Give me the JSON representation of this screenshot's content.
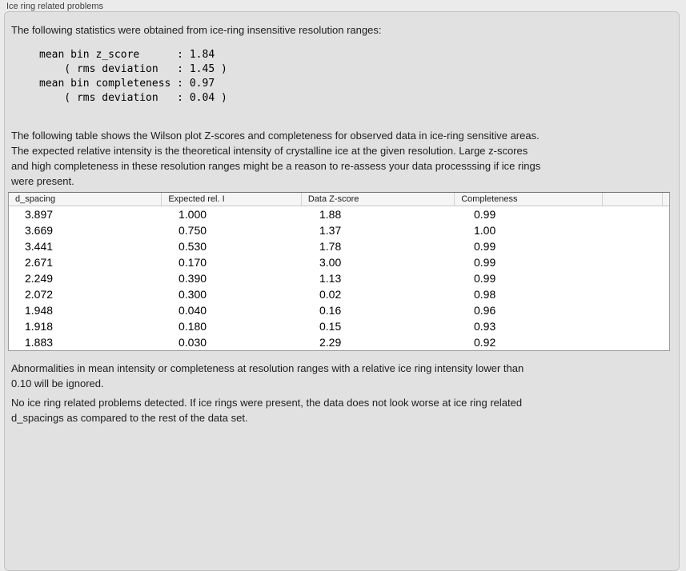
{
  "panel": {
    "title": "Ice ring related problems",
    "intro": "The following statistics were obtained from ice-ring insensitive resolution ranges:",
    "stats_block": "mean bin z_score      : 1.84\n    ( rms deviation   : 1.45 )\nmean bin completeness : 0.97\n    ( rms deviation   : 0.04 )",
    "stats": {
      "mean_bin_z_score": "1.84",
      "z_score_rms_deviation": "1.45",
      "mean_bin_completeness": "0.97",
      "completeness_rms_deviation": "0.04"
    },
    "table_description": "The following table shows the Wilson plot Z-scores and completeness for observed data in ice-ring sensitive areas.\nThe expected relative intensity is the theoretical intensity of crystalline ice at the given resolution. Large z-scores\nand high completeness in these resolution ranges might be a reason to re-assess your data processsing if ice rings\nwere present.",
    "ignore_note": "Abnormalities in mean intensity or completeness at resolution ranges with a relative ice ring intensity lower than\n0.10 will be ignored.",
    "conclusion": "No ice ring related problems detected. If ice rings were present, the data does not look worse at ice ring related\nd_spacings as compared to the rest of the data set."
  },
  "table": {
    "columns": [
      "d_spacing",
      "Expected rel. I",
      "Data Z-score",
      "Completeness"
    ],
    "rows": [
      [
        "3.897",
        "1.000",
        "1.88",
        "0.99"
      ],
      [
        "3.669",
        "0.750",
        "1.37",
        "1.00"
      ],
      [
        "3.441",
        "0.530",
        "1.78",
        "0.99"
      ],
      [
        "2.671",
        "0.170",
        "3.00",
        "0.99"
      ],
      [
        "2.249",
        "0.390",
        "1.13",
        "0.99"
      ],
      [
        "2.072",
        "0.300",
        "0.02",
        "0.98"
      ],
      [
        "1.948",
        "0.040",
        "0.16",
        "0.96"
      ],
      [
        "1.918",
        "0.180",
        "0.15",
        "0.93"
      ],
      [
        "1.883",
        "0.030",
        "2.29",
        "0.92"
      ]
    ]
  },
  "colors": {
    "page_bg": "#ebebeb",
    "panel_bg": "#e1e1e1",
    "table_header_bg": "#f5f5f5",
    "table_border": "#9b9b9b"
  }
}
